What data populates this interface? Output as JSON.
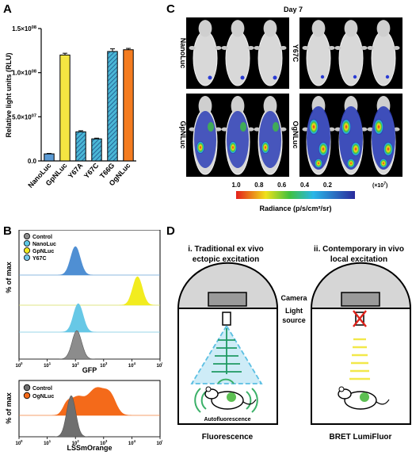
{
  "panels": {
    "a": "A",
    "b": "B",
    "c": "C",
    "d": "D"
  },
  "chart_data": [
    {
      "type": "bar",
      "panel": "A",
      "ylabel": "Relative light units (RLU)",
      "yticks": [
        "0.0",
        "5.0×10^07",
        "1.0×10^08",
        "1.5×10^08"
      ],
      "ylim": [
        0,
        150000000
      ],
      "categories": [
        "NanoLuc",
        "GpNLuc",
        "Y67A",
        "Y67C",
        "T66G",
        "OgNLuc"
      ],
      "values": [
        8000000,
        120000000,
        33000000,
        25000000,
        124000000,
        126000000
      ],
      "errors": [
        500000,
        2000000,
        1200000,
        800000,
        3000000,
        1500000
      ],
      "colors": [
        "#5b9bd5",
        "#f4e542",
        "#4ab7d6",
        "#4ab7d6",
        "#4ab7d6",
        "#f47c20"
      ],
      "hatched": [
        false,
        false,
        true,
        true,
        true,
        false
      ]
    },
    {
      "type": "histogram",
      "panel": "B-top",
      "xlabel": "GFP",
      "ylabel": "% of max",
      "xticks": [
        "10^0",
        "10^1",
        "10^2",
        "10^3",
        "10^4",
        "10^5"
      ],
      "legend": [
        "Control",
        "NanoLuc",
        "GpNLuc",
        "Y67C"
      ],
      "legend_colors": [
        "#8c8c8c",
        "#5ec8e5",
        "#f2ec1f",
        "#74c7e8"
      ],
      "series": [
        {
          "name": "NanoLuc",
          "color": "#4f8fd3",
          "peak_log": 2.0
        },
        {
          "name": "GpNLuc",
          "color": "#f2ec1f",
          "peak_log": 4.2
        },
        {
          "name": "Y67C",
          "color": "#67c8e6",
          "peak_log": 2.1
        },
        {
          "name": "Control",
          "color": "#8c8c8c",
          "peak_log": 2.05
        }
      ]
    },
    {
      "type": "histogram",
      "panel": "B-bottom",
      "xlabel": "LSSmOrange",
      "ylabel": "% of max",
      "xticks": [
        "10^0",
        "10^1",
        "10^2",
        "10^3",
        "10^4",
        "10^5"
      ],
      "legend": [
        "Control",
        "OgNLuc"
      ],
      "legend_colors": [
        "#707070",
        "#f46a1a"
      ],
      "series": [
        {
          "name": "OgNLuc",
          "color": "#f46a1a",
          "peak_log": 2.8
        },
        {
          "name": "Control",
          "color": "#6f6f6f",
          "peak_log": 1.85
        }
      ]
    }
  ],
  "imaging": {
    "title": "Day 7",
    "labels": [
      "NanoLuc",
      "Y67C",
      "GpNLuc",
      "OgNLuc"
    ],
    "scale_ticks": [
      "1.0",
      "0.8",
      "0.6",
      "0.4",
      "0.2"
    ],
    "scale_unit": "(×10",
    "scale_exp": "7",
    "scale_close": ")",
    "radiance_label": "Radiance (p/s/cm²/sr)"
  },
  "diagram": {
    "left_title": "i. Traditional ex vivo",
    "left_title_2": "ectopic excitation",
    "right_title": "ii. Contemporary in vivo",
    "right_title_2": "local excitation",
    "camera": "Camera",
    "light": "Light",
    "source": "source",
    "autofluorescence": "Autofluorescence",
    "left_caption": "Fluorescence",
    "right_caption": "BRET LumiFluor"
  }
}
